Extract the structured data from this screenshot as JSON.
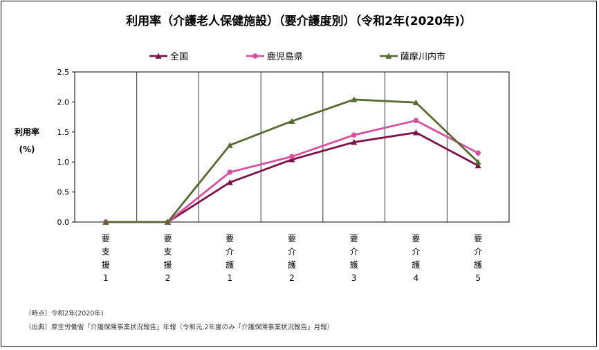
{
  "chart_data": {
    "type": "line",
    "title": "利用率（介護老人保健施設）（要介護度別）（令和2年(2020年)）",
    "ylabel_line1": "利用率",
    "ylabel_line2": "(%)",
    "ylim": [
      0,
      2.5
    ],
    "yticks": [
      "0.0",
      "0.5",
      "1.0",
      "1.5",
      "2.0",
      "2.5"
    ],
    "categories": [
      [
        "要",
        "支",
        "援",
        "1"
      ],
      [
        "要",
        "支",
        "援",
        "2"
      ],
      [
        "要",
        "介",
        "護",
        "1"
      ],
      [
        "要",
        "介",
        "護",
        "2"
      ],
      [
        "要",
        "介",
        "護",
        "3"
      ],
      [
        "要",
        "介",
        "護",
        "4"
      ],
      [
        "要",
        "介",
        "護",
        "5"
      ]
    ],
    "grid": "vertical",
    "legend_position": "top",
    "series": [
      {
        "name": "全国",
        "color": "#7B1149",
        "marker": "triangle",
        "values": [
          0.0,
          0.0,
          0.66,
          1.04,
          1.33,
          1.49,
          0.94
        ]
      },
      {
        "name": "鹿児島県",
        "color": "#D94E9E",
        "marker": "circle",
        "values": [
          0.0,
          0.0,
          0.83,
          1.09,
          1.45,
          1.69,
          1.15
        ]
      },
      {
        "name": "薩摩川内市",
        "color": "#566B2F",
        "marker": "triangle",
        "values": [
          0.0,
          0.0,
          1.28,
          1.68,
          2.04,
          1.99,
          1.0
        ]
      }
    ]
  },
  "notes": {
    "time": "（時点）令和2年(2020年)",
    "source": "（出典）厚生労働省「介護保険事業状況報告」年報（令和元,2年度のみ「介護保険事業状況報告」月報）"
  }
}
